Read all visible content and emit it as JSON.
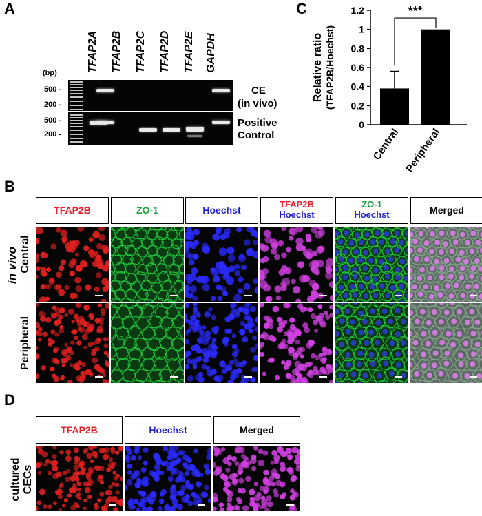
{
  "panels": {
    "a": "A",
    "b": "B",
    "c": "C",
    "d": "D"
  },
  "panel_a": {
    "genes": [
      "TFAP2A",
      "TFAP2B",
      "TFAP2C",
      "TFAP2D",
      "TFAP2E",
      "GAPDH"
    ],
    "bp_unit": "(bp)",
    "top_markers": [
      "500 -",
      "200 -"
    ],
    "bottom_markers": [
      "500 -",
      "200 -"
    ],
    "row_top_label": "CE",
    "row_top_sublabel": "(in vivo)",
    "row_bottom_label_1": "Positive",
    "row_bottom_label_2": "Control"
  },
  "panel_b": {
    "headers": [
      {
        "line1": "TFAP2B",
        "line2": "",
        "color1": "#e8202a",
        "color2": ""
      },
      {
        "line1": "ZO-1",
        "line2": "",
        "color1": "#20a040",
        "color2": ""
      },
      {
        "line1": "Hoechst",
        "line2": "",
        "color1": "#2020d0",
        "color2": ""
      },
      {
        "line1": "TFAP2B",
        "line2": "Hoechst",
        "color1": "#e8202a",
        "color2": "#2020d0"
      },
      {
        "line1": "ZO-1",
        "line2": "Hoechst",
        "color1": "#20a040",
        "color2": "#2020d0"
      },
      {
        "line1": "Merged",
        "line2": "",
        "color1": "#000000",
        "color2": ""
      }
    ],
    "side_label": "in vivo",
    "rows": [
      "Central",
      "Peripheral"
    ]
  },
  "panel_d": {
    "headers": [
      {
        "line1": "TFAP2B",
        "color": "#e8202a"
      },
      {
        "line1": "Hoechst",
        "color": "#2020d0"
      },
      {
        "line1": "Merged",
        "color": "#000000"
      }
    ],
    "side_label_1": "cultured",
    "side_label_2": "CECs"
  },
  "chart_data": {
    "type": "bar",
    "categories": [
      "Central",
      "Peripheral"
    ],
    "values": [
      0.38,
      1.0
    ],
    "errors": [
      0.18,
      0.0
    ],
    "ylabel_1": "Relative ratio",
    "ylabel_2": "(TFAP2B/Hoechst)",
    "ylim": [
      0,
      1.2
    ],
    "yticks": [
      "0",
      "0.2",
      "0.4",
      "0.6",
      "0.8",
      "1",
      "1.2"
    ],
    "significance": "***",
    "bar_color": "#000000"
  }
}
